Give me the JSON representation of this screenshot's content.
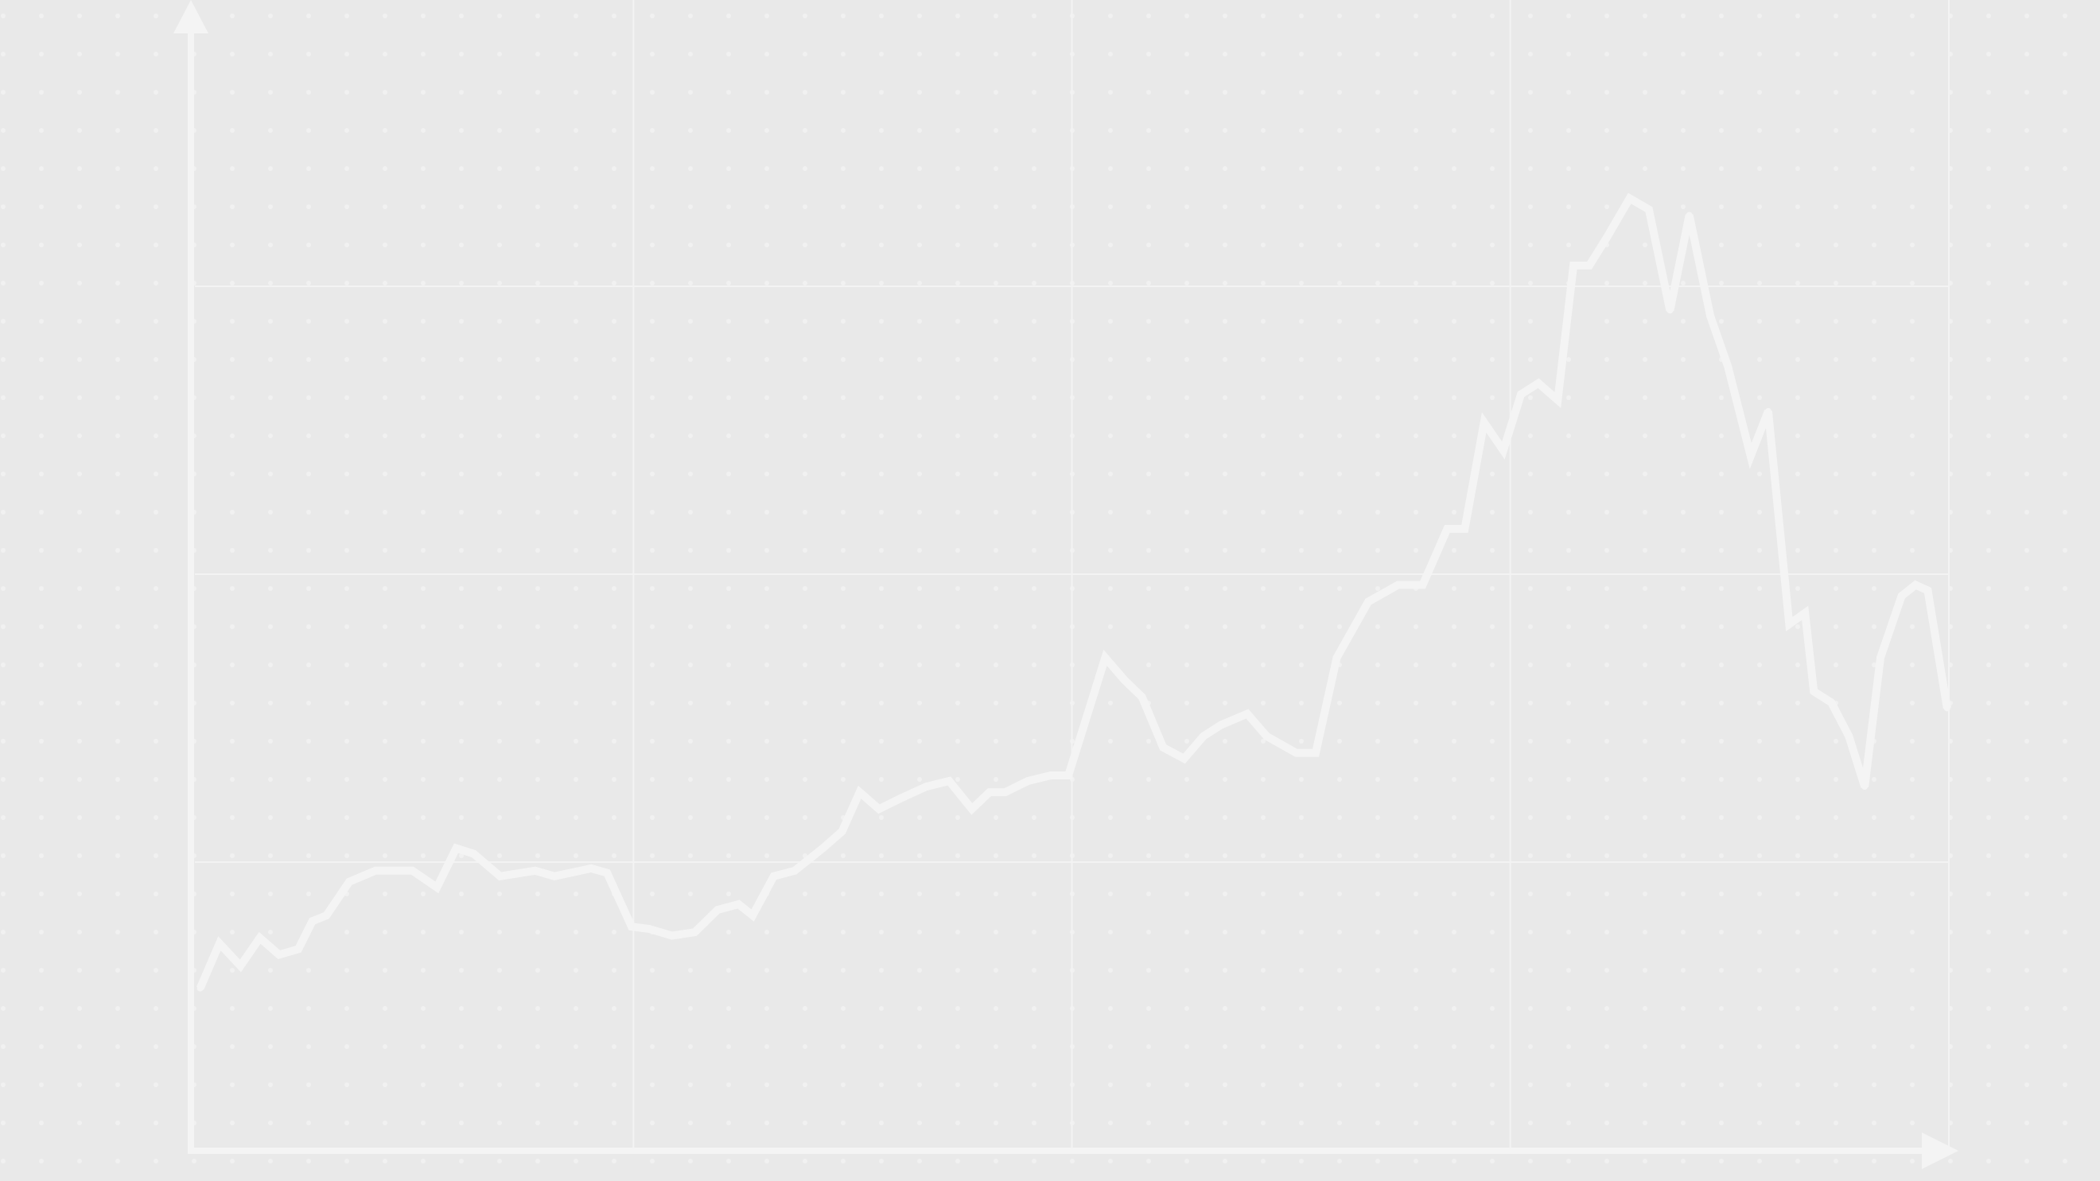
{
  "chart_data": {
    "type": "line",
    "title": "",
    "xlabel": "",
    "ylabel": "",
    "grid": true,
    "background_dots": true,
    "xlim": [
      0,
      100
    ],
    "ylim": [
      0,
      100
    ],
    "colors": {
      "background": "#e9e9e9",
      "line": "#f4f4f4",
      "axis": "#f4f4f4",
      "grid": "#f3f3f3",
      "dots": "#f1f1f1"
    },
    "series": [
      {
        "values": [
          [
            0.3,
            14.5
          ],
          [
            1.4,
            18.5
          ],
          [
            2.6,
            16.5
          ],
          [
            3.7,
            19.0
          ],
          [
            4.8,
            17.5
          ],
          [
            5.9,
            18.0
          ],
          [
            6.7,
            20.5
          ],
          [
            7.5,
            21.0
          ],
          [
            8.8,
            24.0
          ],
          [
            10.3,
            25.0
          ],
          [
            12.4,
            25.0
          ],
          [
            13.8,
            23.5
          ],
          [
            14.9,
            27.0
          ],
          [
            15.9,
            26.5
          ],
          [
            17.4,
            24.5
          ],
          [
            19.4,
            25.0
          ],
          [
            20.5,
            24.5
          ],
          [
            22.6,
            25.2
          ],
          [
            23.5,
            24.8
          ],
          [
            24.9,
            20.0
          ],
          [
            25.9,
            19.8
          ],
          [
            27.2,
            19.2
          ],
          [
            28.5,
            19.5
          ],
          [
            29.8,
            21.5
          ],
          [
            31.0,
            22.0
          ],
          [
            31.8,
            21.0
          ],
          [
            33.0,
            24.5
          ],
          [
            34.2,
            25.0
          ],
          [
            35.8,
            27.0
          ],
          [
            36.9,
            28.5
          ],
          [
            37.9,
            32.0
          ],
          [
            39.0,
            30.5
          ],
          [
            40.3,
            31.5
          ],
          [
            41.7,
            32.5
          ],
          [
            43.0,
            33.0
          ],
          [
            44.3,
            30.5
          ],
          [
            45.3,
            32.0
          ],
          [
            46.2,
            32.0
          ],
          [
            47.5,
            33.0
          ],
          [
            48.8,
            33.5
          ],
          [
            49.8,
            33.5
          ],
          [
            51.9,
            44.0
          ],
          [
            53.0,
            42.0
          ],
          [
            54.0,
            40.5
          ],
          [
            55.2,
            36.0
          ],
          [
            56.4,
            35.0
          ],
          [
            57.5,
            37.0
          ],
          [
            58.5,
            38.0
          ],
          [
            60.0,
            39.0
          ],
          [
            61.1,
            37.0
          ],
          [
            62.8,
            35.5
          ],
          [
            63.9,
            35.5
          ],
          [
            65.1,
            44.0
          ],
          [
            66.9,
            49.0
          ],
          [
            68.6,
            50.5
          ],
          [
            70.0,
            50.5
          ],
          [
            71.4,
            55.5
          ],
          [
            72.4,
            55.5
          ],
          [
            73.5,
            65.0
          ],
          [
            74.6,
            62.5
          ],
          [
            75.6,
            67.5
          ],
          [
            76.6,
            68.5
          ],
          [
            77.7,
            67.0
          ],
          [
            78.6,
            79.0
          ],
          [
            79.5,
            79.0
          ],
          [
            80.5,
            81.5
          ],
          [
            81.8,
            85.0
          ],
          [
            82.9,
            84.0
          ],
          [
            84.1,
            75.0
          ],
          [
            85.2,
            83.5
          ],
          [
            86.4,
            74.5
          ],
          [
            87.4,
            70.0
          ],
          [
            88.7,
            62.0
          ],
          [
            89.7,
            66.0
          ],
          [
            90.9,
            47.0
          ],
          [
            91.8,
            48.0
          ],
          [
            92.3,
            41.0
          ],
          [
            93.3,
            40.0
          ],
          [
            94.3,
            37.0
          ],
          [
            95.2,
            32.5
          ],
          [
            96.1,
            44.0
          ],
          [
            97.3,
            49.5
          ],
          [
            98.1,
            50.5
          ],
          [
            98.8,
            50.0
          ],
          [
            99.9,
            39.5
          ]
        ]
      }
    ]
  }
}
